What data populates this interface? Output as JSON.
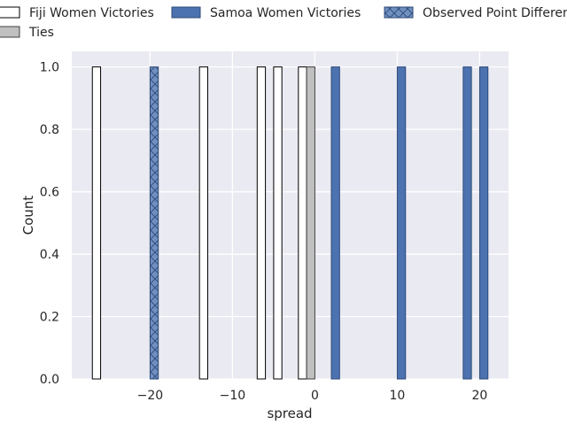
{
  "chart_data": {
    "type": "bar",
    "title": "",
    "xlabel": "spread",
    "ylabel": "Count",
    "xlim": [
      -29.5,
      23.5
    ],
    "ylim": [
      0,
      1.05
    ],
    "xticks": [
      -20,
      -10,
      0,
      10,
      20
    ],
    "xtick_labels": [
      "−20",
      "−10",
      "0",
      "10",
      "20"
    ],
    "yticks": [
      0,
      0.2,
      0.4,
      0.6,
      0.8,
      1.0
    ],
    "ytick_labels": [
      "0.0",
      "0.2",
      "0.4",
      "0.6",
      "0.8",
      "1.0"
    ],
    "grid": true,
    "legend_placement": "top",
    "bin_width": 1.0,
    "series": [
      {
        "name": "Fiji Women Victories",
        "color": "#ffffff",
        "edge": "#000000",
        "hatch": "none",
        "bars": [
          {
            "x": -26.5,
            "count": 1
          },
          {
            "x": -13.5,
            "count": 1
          },
          {
            "x": -6.5,
            "count": 1
          },
          {
            "x": -4.5,
            "count": 1
          },
          {
            "x": -1.5,
            "count": 1
          }
        ]
      },
      {
        "name": "Ties",
        "color": "#c0c0c0",
        "edge": "#404040",
        "hatch": "none",
        "bars": [
          {
            "x": -0.5,
            "count": 1
          }
        ]
      },
      {
        "name": "Samoa Women Victories",
        "color": "#4c72b0",
        "edge": "#2d4a78",
        "hatch": "none",
        "bars": [
          {
            "x": 2.5,
            "count": 1
          },
          {
            "x": 10.5,
            "count": 1
          },
          {
            "x": 18.5,
            "count": 1
          },
          {
            "x": 20.5,
            "count": 1
          }
        ]
      },
      {
        "name": "Observed Point Difference",
        "color": "#6f8fc0",
        "edge": "#2d4a78",
        "hatch": "x",
        "bars": [
          {
            "x": -19.5,
            "count": 1
          }
        ]
      }
    ]
  },
  "legend": {
    "entries": [
      {
        "label": "Fiji Women Victories",
        "series": 0
      },
      {
        "label": "Samoa Women Victories",
        "series": 2
      },
      {
        "label": "Observed Point Difference",
        "series": 3
      },
      {
        "label": "Ties",
        "series": 1
      }
    ]
  }
}
